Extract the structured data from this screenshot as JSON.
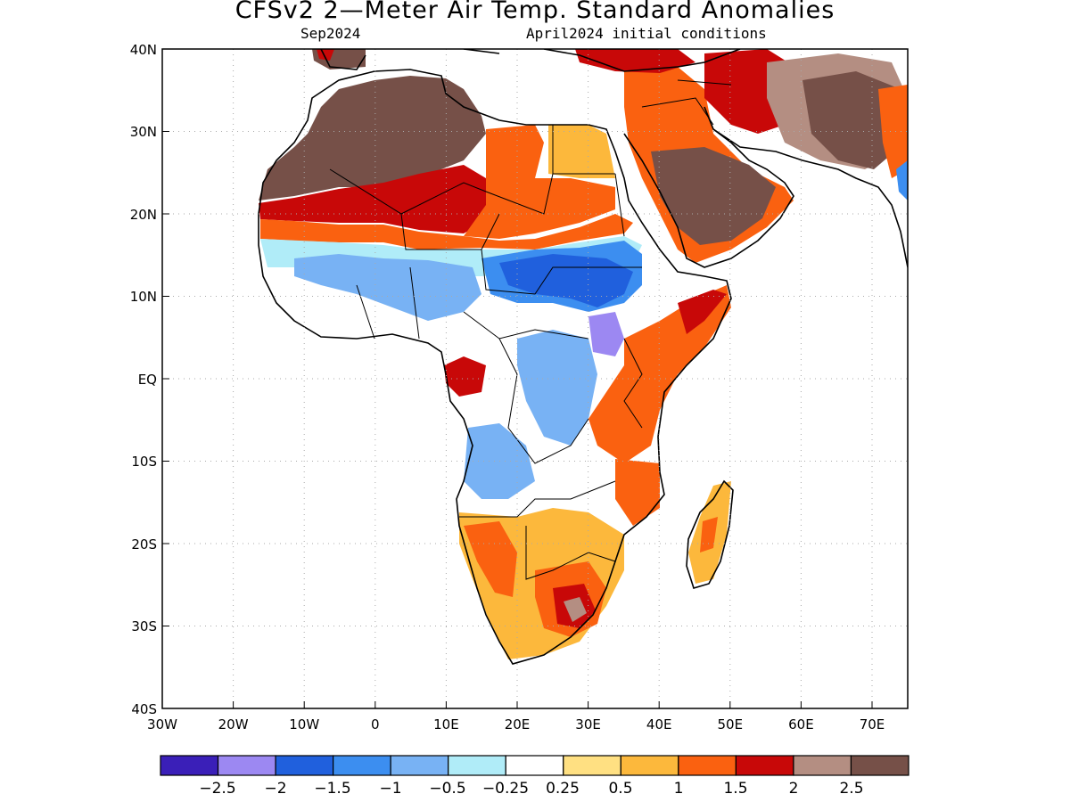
{
  "title": "CFSv2 2—Meter Air Temp. Standard Anomalies",
  "subtitle_left": "Sep2024",
  "subtitle_right": "April2024 initial conditions",
  "axes": {
    "lat_labels": [
      "40N",
      "30N",
      "20N",
      "10N",
      "EQ",
      "10S",
      "20S",
      "30S",
      "40S"
    ],
    "lon_labels": [
      "30W",
      "20W",
      "10W",
      "0",
      "10E",
      "20E",
      "30E",
      "40E",
      "50E",
      "60E",
      "70E"
    ],
    "lat_range": [
      -40,
      40
    ],
    "lon_range": [
      -30,
      75
    ],
    "grid": "dotted"
  },
  "colorbar": {
    "colors": [
      "#3a1fb8",
      "#9c88f2",
      "#2060dd",
      "#3c8ef0",
      "#78b2f4",
      "#b0ecf8",
      "#ffffff",
      "#ffe082",
      "#fcb83c",
      "#fa6110",
      "#c80808",
      "#b48e82",
      "#765048"
    ],
    "labels": [
      "−2.5",
      "−2",
      "−1.5",
      "−1",
      "−0.5",
      "−0.25",
      "0.25",
      "0.5",
      "1",
      "1.5",
      "2",
      "2.5"
    ]
  }
}
